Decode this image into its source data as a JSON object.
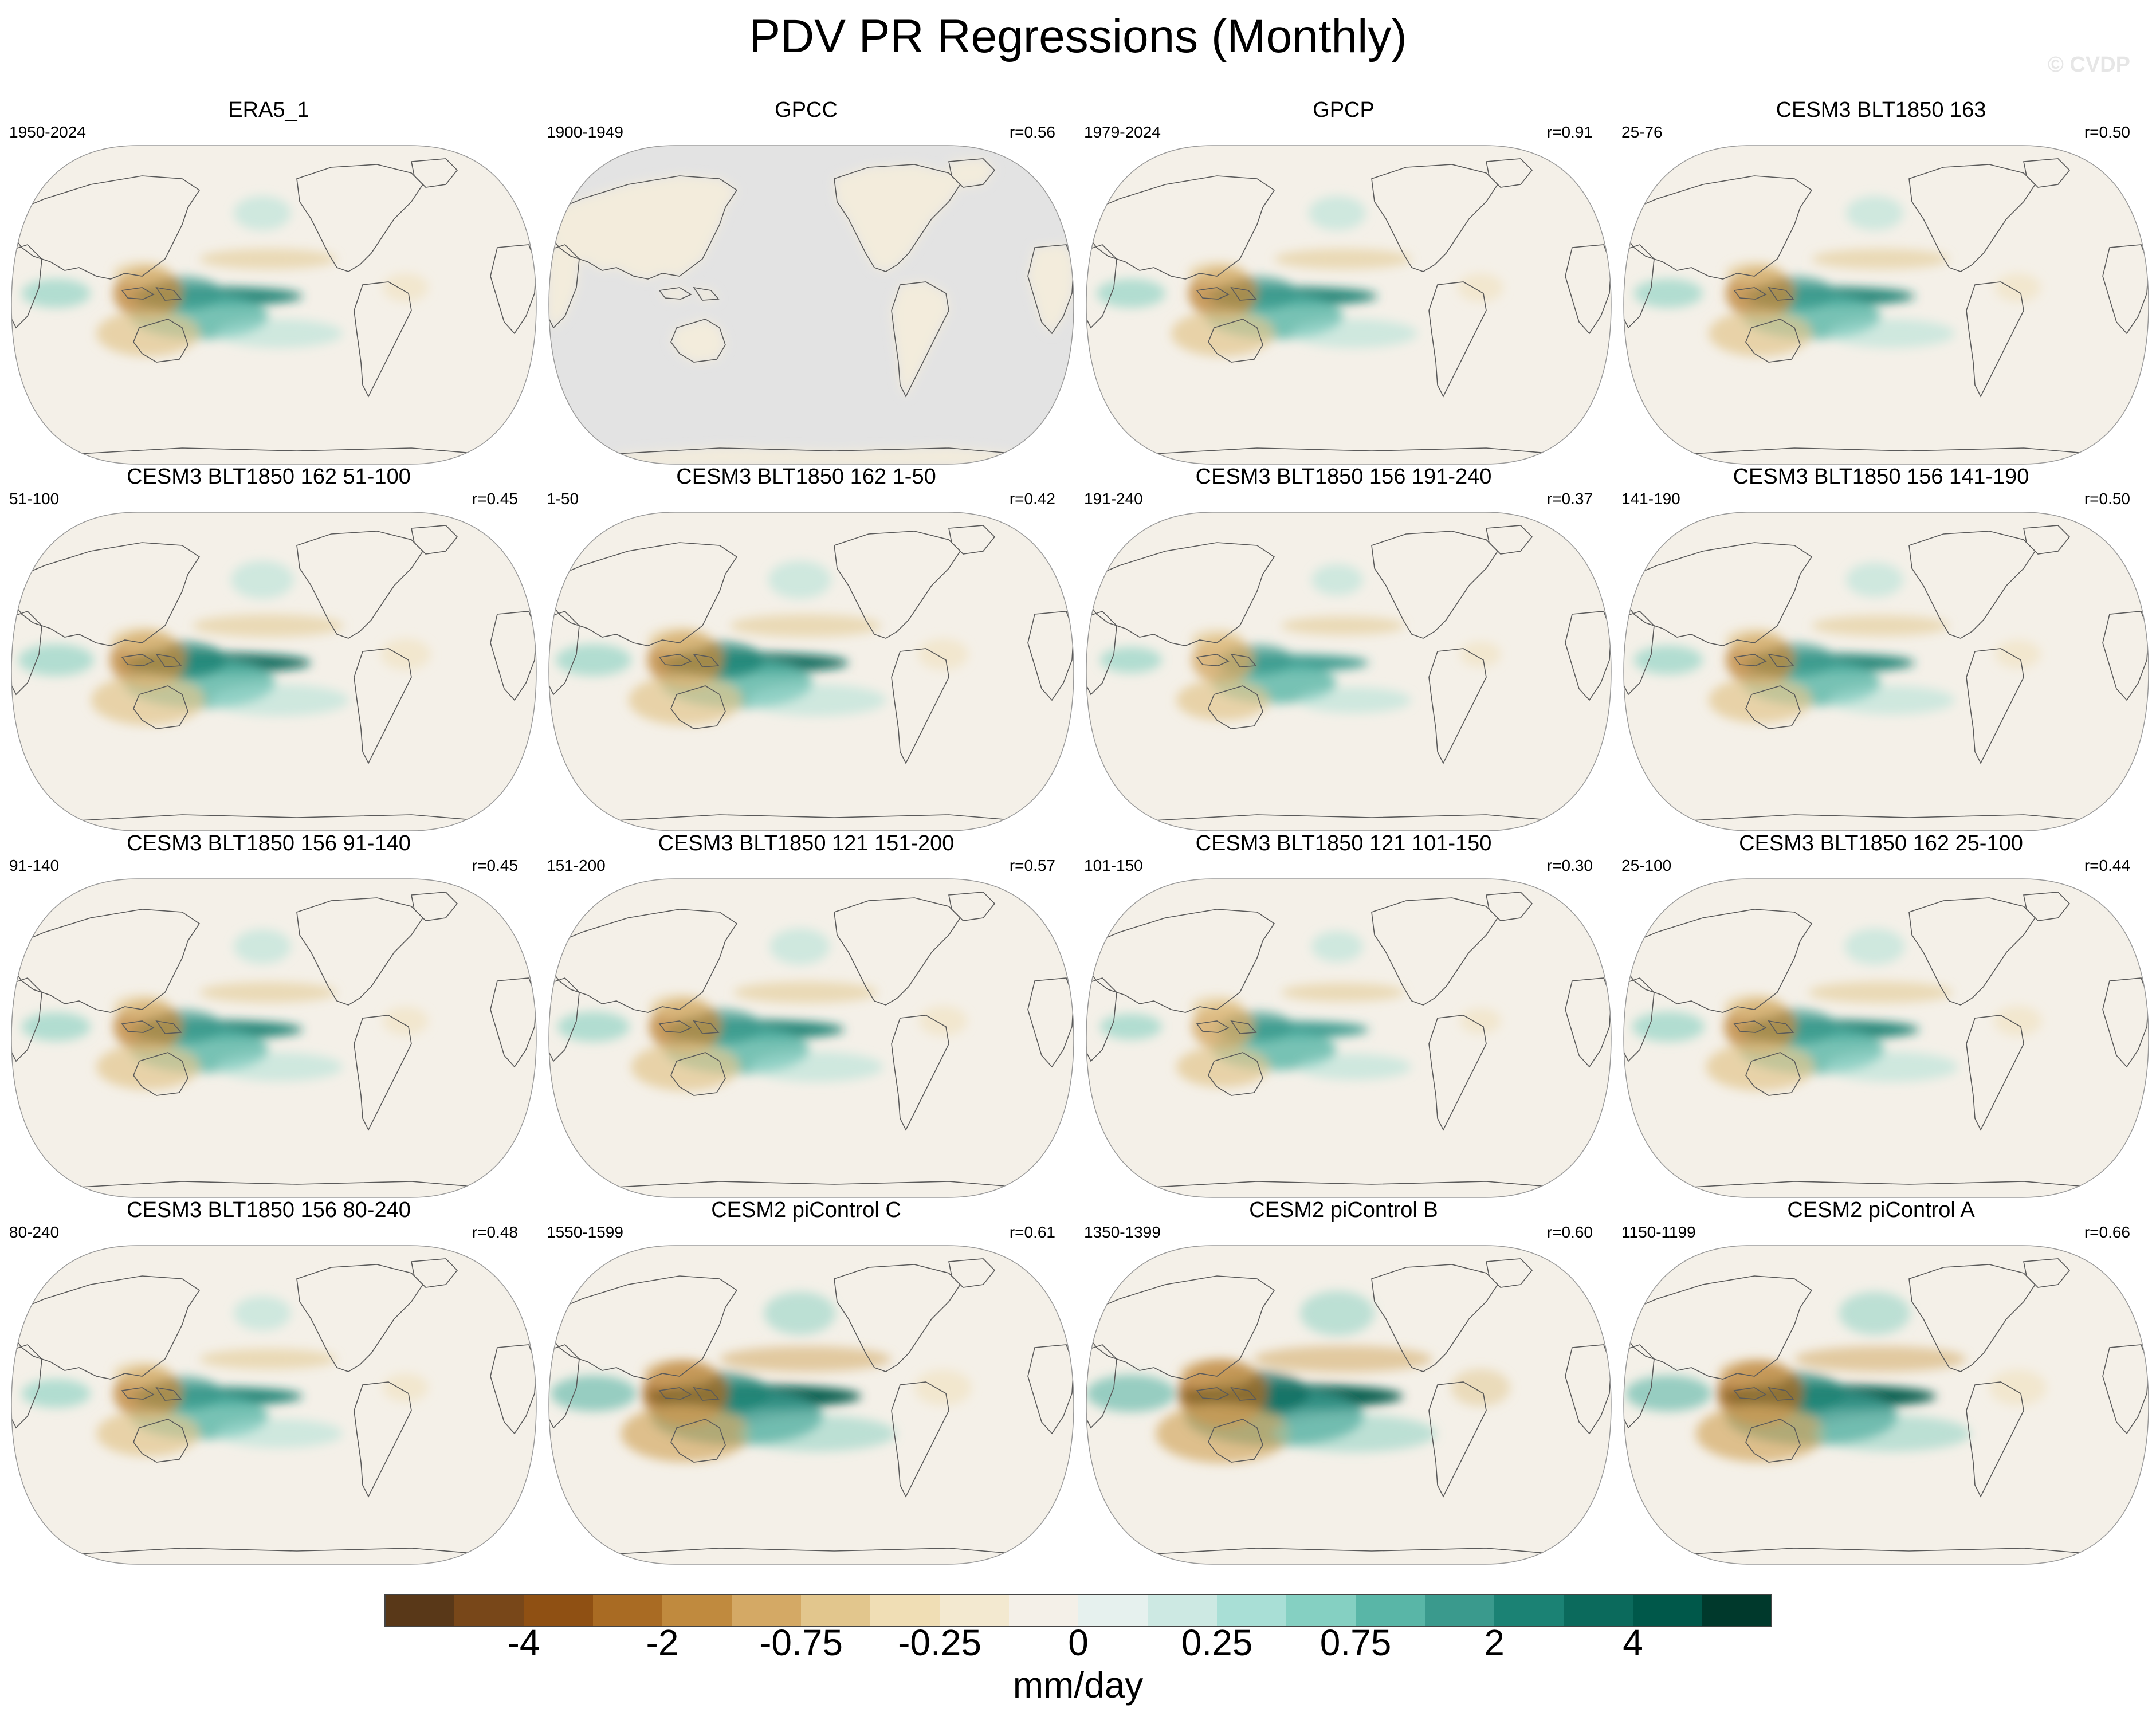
{
  "title": "PDV PR Regressions (Monthly)",
  "watermark": "© CVDP",
  "chart_data": {
    "type": "contour-map-grid",
    "variable": "PR",
    "units": "mm/day",
    "panels": [
      {
        "title": "ERA5_1",
        "period": "1950-2024",
        "r": ""
      },
      {
        "title": "GPCC",
        "period": "1900-1949",
        "r": "r=0.56"
      },
      {
        "title": "GPCP",
        "period": "1979-2024",
        "r": "r=0.91"
      },
      {
        "title": "CESM3 BLT1850 163",
        "period": "25-76",
        "r": "r=0.50"
      },
      {
        "title": "CESM3 BLT1850 162 51-100",
        "period": "51-100",
        "r": "r=0.45"
      },
      {
        "title": "CESM3 BLT1850 162 1-50",
        "period": "1-50",
        "r": "r=0.42"
      },
      {
        "title": "CESM3 BLT1850 156 191-240",
        "period": "191-240",
        "r": "r=0.37"
      },
      {
        "title": "CESM3 BLT1850 156 141-190",
        "period": "141-190",
        "r": "r=0.50"
      },
      {
        "title": "CESM3 BLT1850 156 91-140",
        "period": "91-140",
        "r": "r=0.45"
      },
      {
        "title": "CESM3 BLT1850 121 151-200",
        "period": "151-200",
        "r": "r=0.57"
      },
      {
        "title": "CESM3 BLT1850 121 101-150",
        "period": "101-150",
        "r": "r=0.30"
      },
      {
        "title": "CESM3 BLT1850 162 25-100",
        "period": "25-100",
        "r": "r=0.44"
      },
      {
        "title": "CESM3 BLT1850 156 80-240",
        "period": "80-240",
        "r": "r=0.48"
      },
      {
        "title": "CESM2 piControl C",
        "period": "1550-1599",
        "r": "r=0.61"
      },
      {
        "title": "CESM2 piControl B",
        "period": "1350-1399",
        "r": "r=0.60"
      },
      {
        "title": "CESM2 piControl A",
        "period": "1150-1199",
        "r": "r=0.66"
      }
    ],
    "colorbar": {
      "colors": [
        "#593818",
        "#784719",
        "#8f5013",
        "#a96b23",
        "#c08a3e",
        "#d4a965",
        "#e2c68d",
        "#f0deb5",
        "#f3e9d0",
        "#f4f0e8",
        "#e6f1ee",
        "#cde9e3",
        "#a9dfd6",
        "#85d0c2",
        "#59b6a7",
        "#3a9a8d",
        "#1b8274",
        "#0b6a5c",
        "#00584a",
        "#00392c"
      ],
      "tick_labels": [
        "-4",
        "-2",
        "-0.75",
        "-0.25",
        "0",
        "0.25",
        "0.75",
        "2",
        "4"
      ],
      "label": "mm/day"
    }
  }
}
